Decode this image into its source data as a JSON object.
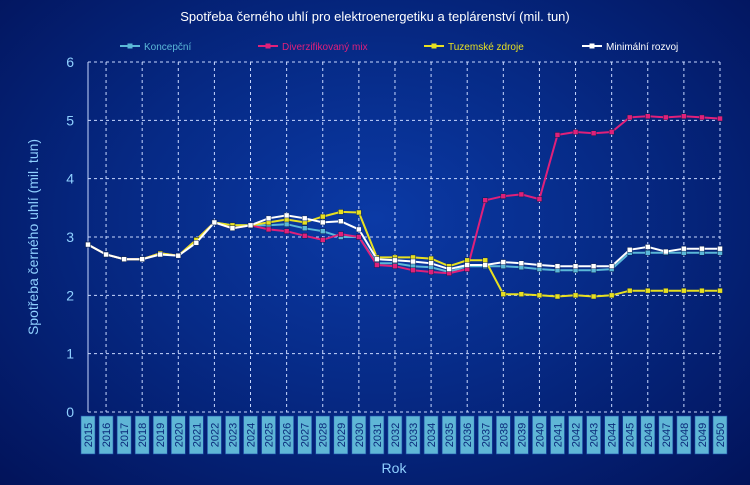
{
  "chart_data": {
    "type": "line",
    "title": "Spotřeba černého uhlí  pro elektroenergetiku  a teplárenství  (mil. tun)",
    "xlabel": "Rok",
    "ylabel": "Spotřeba černého uhlí  (mil. tun)",
    "ylim": [
      0,
      6
    ],
    "yticks": [
      "0",
      "1",
      "2",
      "3",
      "4",
      "5",
      "6"
    ],
    "grid": true,
    "legend_position": "top",
    "x": [
      "2015",
      "2016",
      "2017",
      "2018",
      "2019",
      "2020",
      "2021",
      "2022",
      "2023",
      "2024",
      "2025",
      "2026",
      "2027",
      "2028",
      "2029",
      "2030",
      "2031",
      "2032",
      "2033",
      "2034",
      "2035",
      "2036",
      "2037",
      "2038",
      "2039",
      "2040",
      "2041",
      "2042",
      "2043",
      "2044",
      "2045",
      "2046",
      "2047",
      "2048",
      "2049",
      "2050"
    ],
    "series": [
      {
        "name": "Koncepční",
        "color": "#5bb8d8",
        "values": [
          2.87,
          2.7,
          2.62,
          2.62,
          2.72,
          2.68,
          2.95,
          3.25,
          3.2,
          3.2,
          3.2,
          3.22,
          3.15,
          3.1,
          3.0,
          3.0,
          2.55,
          2.55,
          2.5,
          2.48,
          2.4,
          2.5,
          2.5,
          2.5,
          2.48,
          2.45,
          2.43,
          2.43,
          2.43,
          2.45,
          2.73,
          2.73,
          2.73,
          2.73,
          2.73,
          2.73
        ]
      },
      {
        "name": "Diverzifikovaný mix",
        "color": "#e0207a",
        "values": [
          2.87,
          2.7,
          2.62,
          2.62,
          2.72,
          2.68,
          2.95,
          3.25,
          3.15,
          3.2,
          3.13,
          3.1,
          3.02,
          2.95,
          3.05,
          3.0,
          2.52,
          2.5,
          2.43,
          2.4,
          2.38,
          2.45,
          3.63,
          3.7,
          3.73,
          3.65,
          4.75,
          4.8,
          4.78,
          4.8,
          5.05,
          5.07,
          5.05,
          5.07,
          5.05,
          5.03
        ]
      },
      {
        "name": "Tuzemské zdroje",
        "color": "#e8e020",
        "values": [
          2.87,
          2.7,
          2.62,
          2.62,
          2.72,
          2.68,
          2.95,
          3.25,
          3.2,
          3.2,
          3.25,
          3.3,
          3.25,
          3.35,
          3.43,
          3.42,
          2.65,
          2.65,
          2.65,
          2.63,
          2.5,
          2.6,
          2.6,
          2.02,
          2.02,
          2.0,
          1.98,
          2.0,
          1.98,
          2.0,
          2.08,
          2.08,
          2.08,
          2.08,
          2.08,
          2.08
        ]
      },
      {
        "name": "Minimální rozvoj",
        "color": "#ffffff",
        "values": [
          2.87,
          2.7,
          2.62,
          2.62,
          2.7,
          2.68,
          2.9,
          3.25,
          3.15,
          3.2,
          3.32,
          3.37,
          3.32,
          3.25,
          3.27,
          3.13,
          2.62,
          2.6,
          2.58,
          2.55,
          2.45,
          2.52,
          2.52,
          2.57,
          2.55,
          2.52,
          2.5,
          2.5,
          2.5,
          2.5,
          2.78,
          2.83,
          2.75,
          2.8,
          2.8,
          2.8
        ]
      }
    ]
  }
}
